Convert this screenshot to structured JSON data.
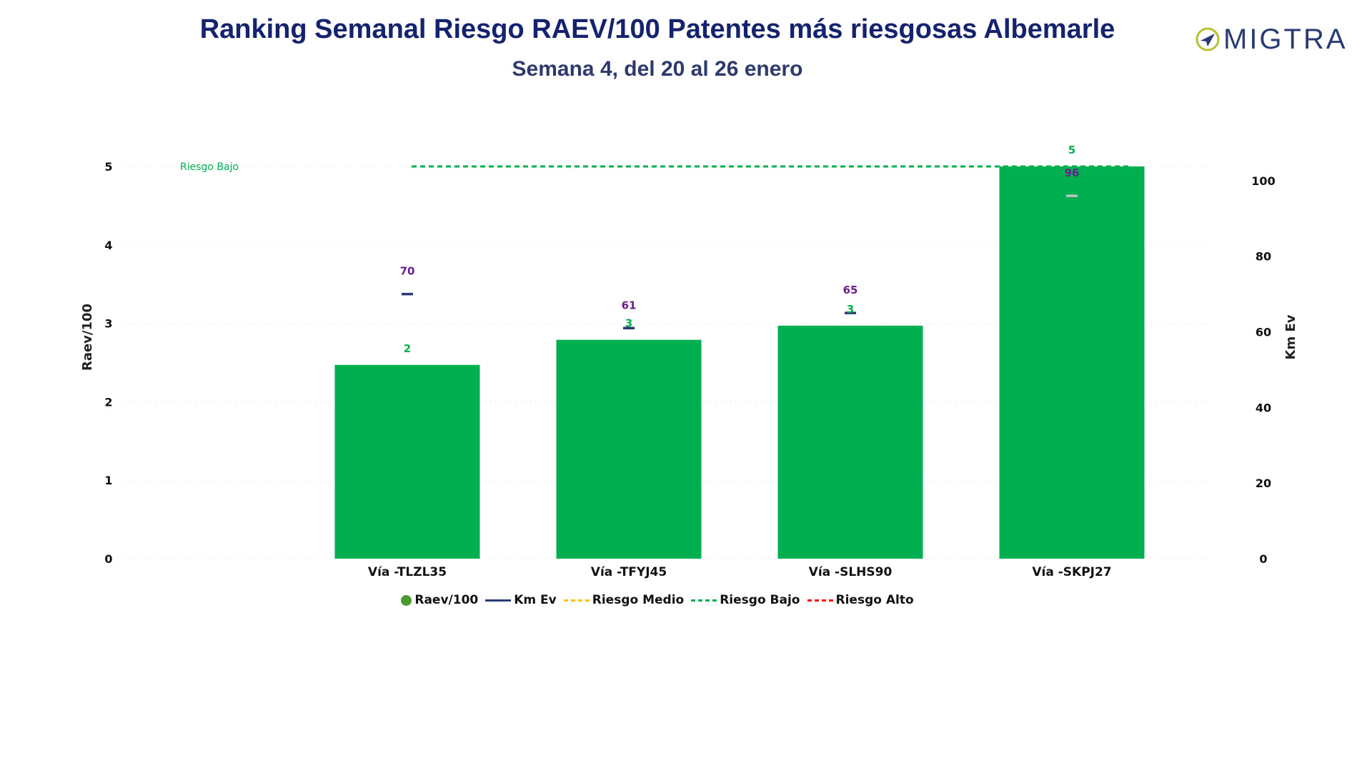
{
  "header": {
    "title": "Ranking Semanal Riesgo RAEV/100 Patentes más riesgosas Albemarle",
    "subtitle": "Semana 4, del 20 al 26 enero",
    "logo_text": "MIGTRA"
  },
  "colors": {
    "bar": "#00b050",
    "km_line": "#2a3a72",
    "km_label": "#6b1f8c",
    "raev_label": "#00b050",
    "riesgo_medio": "#ffc000",
    "riesgo_bajo": "#00b050",
    "riesgo_alto": "#ff0000",
    "legend_dot": "#4a9a30"
  },
  "chart_data": {
    "type": "bar",
    "categories": [
      "Vía -TLZL35",
      "Vía -TFYJ45",
      "Vía -SLHS90",
      "Vía -SKPJ27"
    ],
    "series": [
      {
        "name": "Raev/100",
        "axis": "left",
        "values": [
          2.47,
          2.79,
          2.97,
          5.0
        ],
        "labels": [
          "2",
          "3",
          "3",
          "5"
        ]
      },
      {
        "name": "Km Ev",
        "axis": "right",
        "type": "line-marker",
        "values": [
          70,
          61,
          65,
          96
        ],
        "labels": [
          "70",
          "61",
          "65",
          "96"
        ]
      }
    ],
    "reference_lines": [
      {
        "name": "Riesgo Bajo",
        "axis": "left",
        "value": 5,
        "style": "dashed",
        "label": "Riesgo Bajo"
      }
    ],
    "legend": [
      "Raev/100",
      "Km Ev",
      "Riesgo Medio",
      "Riesgo Bajo",
      "Riesgo Alto"
    ],
    "legend_position": "bottom",
    "ylabel": "Raev/100",
    "ylabel_right": "Km Ev",
    "ylim": [
      0,
      5.3
    ],
    "ylim_right": [
      0,
      110
    ],
    "yticks": [
      0,
      1,
      2,
      3,
      4,
      5
    ],
    "yticks_right": [
      0,
      20,
      40,
      60,
      80,
      100
    ],
    "grid": true
  }
}
